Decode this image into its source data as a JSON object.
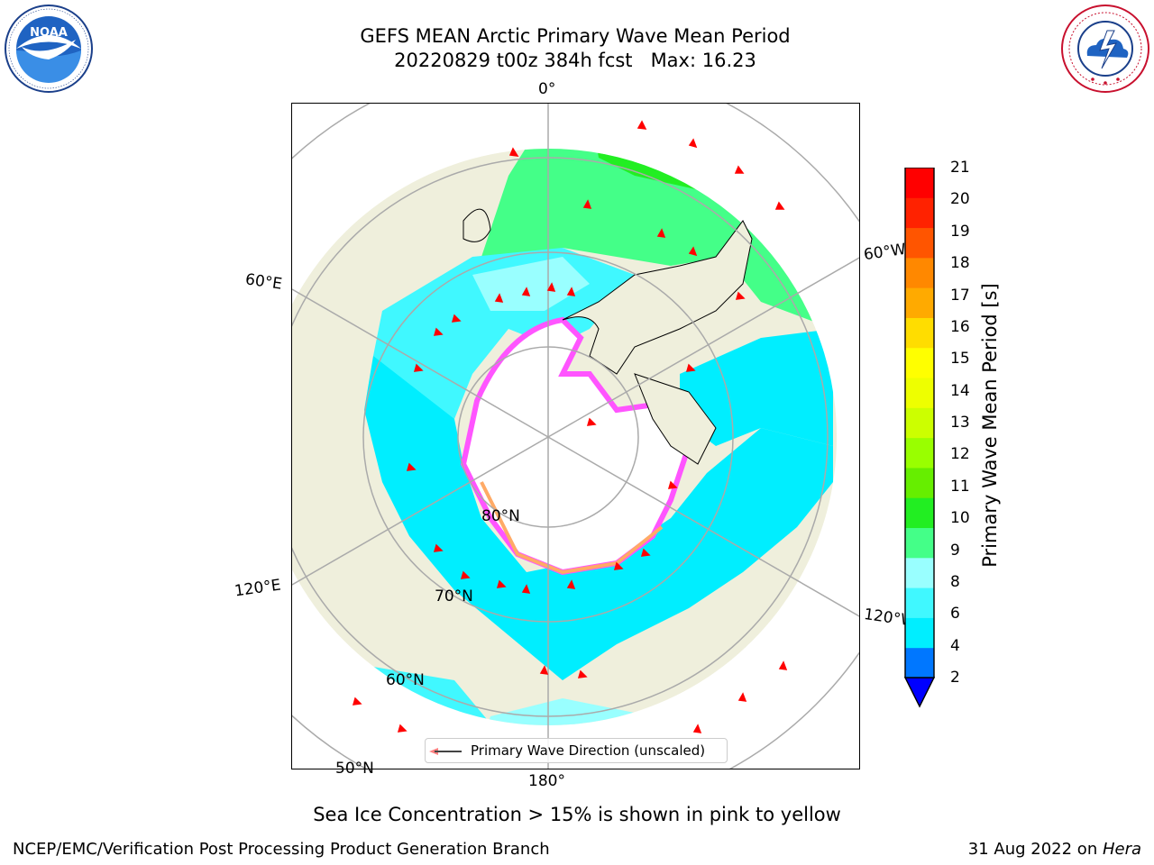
{
  "title": {
    "line1": "GEFS MEAN Arctic Primary Wave Mean Period",
    "line2": "20220829 t00z 384h fcst   Max: 16.23"
  },
  "logos": {
    "left": {
      "text": "NOAA",
      "icon": "noaa-logo",
      "ring_text": "NATIONAL OCEANIC AND ATMOSPHERIC ADMINISTRATION · U.S. DEPARTMENT OF COMMERCE"
    },
    "right": {
      "icon": "nws-logo",
      "ring_text": "NATIONAL WEATHER SERVICE"
    }
  },
  "map": {
    "projection": "north-polar-stereographic",
    "longitude_labels": {
      "top": "0°",
      "left_upper": "60°E",
      "right_upper": "60°W",
      "left_lower": "120°E",
      "right_lower": "120°W",
      "bottom": "180°"
    },
    "latitude_labels": {
      "lat80": "80°N",
      "lat70": "70°N",
      "lat60": "60°N",
      "lat50": "50°N"
    },
    "colors": {
      "land": "#efefdc",
      "sea_ice_free_pole": "#ffffff",
      "grid": "#aaaaaa",
      "coast": "#000000",
      "arrow": "#ff0000",
      "ice_edge": "#ff55ff"
    }
  },
  "legend": {
    "label": "Primary Wave Direction (unscaled)"
  },
  "colorbar": {
    "label": "Primary Wave Mean Period [s]",
    "ticks": [
      "21",
      "20",
      "19",
      "18",
      "17",
      "16",
      "15",
      "14",
      "13",
      "12",
      "11",
      "10",
      "9",
      "8",
      "6",
      "4",
      "2"
    ],
    "colors": [
      "#0000ff",
      "#0077ff",
      "#00eeff",
      "#40f8ff",
      "#99ffff",
      "#44ff88",
      "#22ee22",
      "#66ee00",
      "#99ff00",
      "#ccff00",
      "#eeff00",
      "#ffff00",
      "#ffdd00",
      "#ffaa00",
      "#ff8800",
      "#ff5500",
      "#ff2200",
      "#ff0000"
    ]
  },
  "note": "Sea Ice Concentration > 15% is shown in pink to yellow",
  "footer": {
    "left": "NCEP/EMC/Verification Post Processing Product Generation Branch",
    "date": "31 Aug 2022 on ",
    "host": "Hera"
  }
}
